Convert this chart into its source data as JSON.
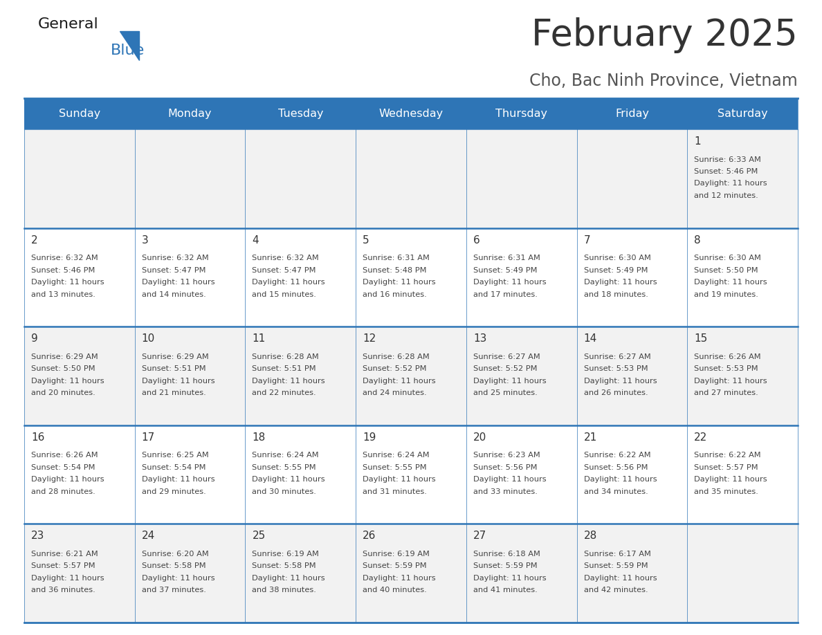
{
  "title": "February 2025",
  "subtitle": "Cho, Bac Ninh Province, Vietnam",
  "header_bg": "#2E75B6",
  "header_text_color": "#FFFFFF",
  "row_bg_even": "#F2F2F2",
  "row_bg_odd": "#FFFFFF",
  "day_headers": [
    "Sunday",
    "Monday",
    "Tuesday",
    "Wednesday",
    "Thursday",
    "Friday",
    "Saturday"
  ],
  "border_color": "#2E75B6",
  "title_color": "#333333",
  "subtitle_color": "#555555",
  "day_number_color": "#333333",
  "cell_text_color": "#444444",
  "calendar_data": [
    [
      null,
      null,
      null,
      null,
      null,
      null,
      {
        "day": 1,
        "sunrise": "6:33 AM",
        "sunset": "5:46 PM",
        "daylight": "11 hours and 12 minutes."
      }
    ],
    [
      {
        "day": 2,
        "sunrise": "6:32 AM",
        "sunset": "5:46 PM",
        "daylight": "11 hours and 13 minutes."
      },
      {
        "day": 3,
        "sunrise": "6:32 AM",
        "sunset": "5:47 PM",
        "daylight": "11 hours and 14 minutes."
      },
      {
        "day": 4,
        "sunrise": "6:32 AM",
        "sunset": "5:47 PM",
        "daylight": "11 hours and 15 minutes."
      },
      {
        "day": 5,
        "sunrise": "6:31 AM",
        "sunset": "5:48 PM",
        "daylight": "11 hours and 16 minutes."
      },
      {
        "day": 6,
        "sunrise": "6:31 AM",
        "sunset": "5:49 PM",
        "daylight": "11 hours and 17 minutes."
      },
      {
        "day": 7,
        "sunrise": "6:30 AM",
        "sunset": "5:49 PM",
        "daylight": "11 hours and 18 minutes."
      },
      {
        "day": 8,
        "sunrise": "6:30 AM",
        "sunset": "5:50 PM",
        "daylight": "11 hours and 19 minutes."
      }
    ],
    [
      {
        "day": 9,
        "sunrise": "6:29 AM",
        "sunset": "5:50 PM",
        "daylight": "11 hours and 20 minutes."
      },
      {
        "day": 10,
        "sunrise": "6:29 AM",
        "sunset": "5:51 PM",
        "daylight": "11 hours and 21 minutes."
      },
      {
        "day": 11,
        "sunrise": "6:28 AM",
        "sunset": "5:51 PM",
        "daylight": "11 hours and 22 minutes."
      },
      {
        "day": 12,
        "sunrise": "6:28 AM",
        "sunset": "5:52 PM",
        "daylight": "11 hours and 24 minutes."
      },
      {
        "day": 13,
        "sunrise": "6:27 AM",
        "sunset": "5:52 PM",
        "daylight": "11 hours and 25 minutes."
      },
      {
        "day": 14,
        "sunrise": "6:27 AM",
        "sunset": "5:53 PM",
        "daylight": "11 hours and 26 minutes."
      },
      {
        "day": 15,
        "sunrise": "6:26 AM",
        "sunset": "5:53 PM",
        "daylight": "11 hours and 27 minutes."
      }
    ],
    [
      {
        "day": 16,
        "sunrise": "6:26 AM",
        "sunset": "5:54 PM",
        "daylight": "11 hours and 28 minutes."
      },
      {
        "day": 17,
        "sunrise": "6:25 AM",
        "sunset": "5:54 PM",
        "daylight": "11 hours and 29 minutes."
      },
      {
        "day": 18,
        "sunrise": "6:24 AM",
        "sunset": "5:55 PM",
        "daylight": "11 hours and 30 minutes."
      },
      {
        "day": 19,
        "sunrise": "6:24 AM",
        "sunset": "5:55 PM",
        "daylight": "11 hours and 31 minutes."
      },
      {
        "day": 20,
        "sunrise": "6:23 AM",
        "sunset": "5:56 PM",
        "daylight": "11 hours and 33 minutes."
      },
      {
        "day": 21,
        "sunrise": "6:22 AM",
        "sunset": "5:56 PM",
        "daylight": "11 hours and 34 minutes."
      },
      {
        "day": 22,
        "sunrise": "6:22 AM",
        "sunset": "5:57 PM",
        "daylight": "11 hours and 35 minutes."
      }
    ],
    [
      {
        "day": 23,
        "sunrise": "6:21 AM",
        "sunset": "5:57 PM",
        "daylight": "11 hours and 36 minutes."
      },
      {
        "day": 24,
        "sunrise": "6:20 AM",
        "sunset": "5:58 PM",
        "daylight": "11 hours and 37 minutes."
      },
      {
        "day": 25,
        "sunrise": "6:19 AM",
        "sunset": "5:58 PM",
        "daylight": "11 hours and 38 minutes."
      },
      {
        "day": 26,
        "sunrise": "6:19 AM",
        "sunset": "5:59 PM",
        "daylight": "11 hours and 40 minutes."
      },
      {
        "day": 27,
        "sunrise": "6:18 AM",
        "sunset": "5:59 PM",
        "daylight": "11 hours and 41 minutes."
      },
      {
        "day": 28,
        "sunrise": "6:17 AM",
        "sunset": "5:59 PM",
        "daylight": "11 hours and 42 minutes."
      },
      null
    ]
  ],
  "logo_general_color": "#1a1a1a",
  "logo_blue_color": "#2E75B6",
  "logo_triangle_color": "#2E75B6"
}
